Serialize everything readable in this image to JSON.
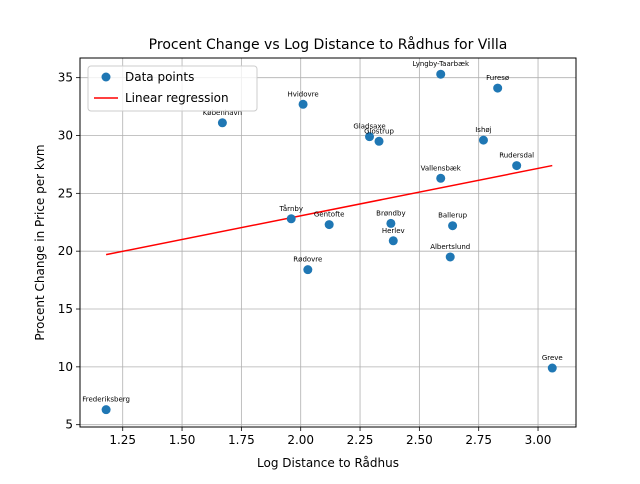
{
  "chart_data": {
    "type": "scatter",
    "title": "Procent Change vs Log Distance to Rådhus for Villa",
    "xlabel": "Log Distance to Rådhus",
    "ylabel": "Procent Change in Price per kvm",
    "xlim": [
      1.07,
      3.16
    ],
    "ylim": [
      4.8,
      36.7
    ],
    "x_ticks": [
      "1.25",
      "1.50",
      "1.75",
      "2.00",
      "2.25",
      "2.50",
      "2.75",
      "3.00"
    ],
    "x_tick_values": [
      1.25,
      1.5,
      1.75,
      2.0,
      2.25,
      2.5,
      2.75,
      3.0
    ],
    "y_ticks": [
      "5",
      "10",
      "15",
      "20",
      "25",
      "30",
      "35"
    ],
    "y_tick_values": [
      5,
      10,
      15,
      20,
      25,
      30,
      35
    ],
    "grid": true,
    "legend_position": "top-left",
    "legend": {
      "points_label": "Data points",
      "regression_label": "Linear regression"
    },
    "points": [
      {
        "label": "Frederiksberg",
        "x": 1.18,
        "y": 6.3
      },
      {
        "label": "København",
        "x": 1.67,
        "y": 31.1
      },
      {
        "label": "Hvidovre",
        "x": 2.01,
        "y": 32.7
      },
      {
        "label": "Tårnby",
        "x": 1.96,
        "y": 22.8
      },
      {
        "label": "Gentofte",
        "x": 2.12,
        "y": 22.3
      },
      {
        "label": "Rødovre",
        "x": 2.03,
        "y": 18.4
      },
      {
        "label": "Gladsaxe",
        "x": 2.29,
        "y": 29.9
      },
      {
        "label": "Glostrup",
        "x": 2.33,
        "y": 29.5
      },
      {
        "label": "Brøndby",
        "x": 2.38,
        "y": 22.4
      },
      {
        "label": "Herlev",
        "x": 2.39,
        "y": 20.9
      },
      {
        "label": "Lyngby-Taarbæk",
        "x": 2.59,
        "y": 35.3
      },
      {
        "label": "Vallensbæk",
        "x": 2.59,
        "y": 26.3
      },
      {
        "label": "Ballerup",
        "x": 2.64,
        "y": 22.2
      },
      {
        "label": "Albertslund",
        "x": 2.63,
        "y": 19.5
      },
      {
        "label": "Furesø",
        "x": 2.83,
        "y": 34.1
      },
      {
        "label": "Ishøj",
        "x": 2.77,
        "y": 29.6
      },
      {
        "label": "Rudersdal",
        "x": 2.91,
        "y": 27.4
      },
      {
        "label": "Greve",
        "x": 3.06,
        "y": 9.9
      }
    ],
    "regression": {
      "x": [
        1.18,
        3.06
      ],
      "y": [
        19.7,
        27.4
      ]
    },
    "colors": {
      "points": "#1f77b4",
      "regression": "#ff0000",
      "grid": "#b0b0b0"
    }
  }
}
